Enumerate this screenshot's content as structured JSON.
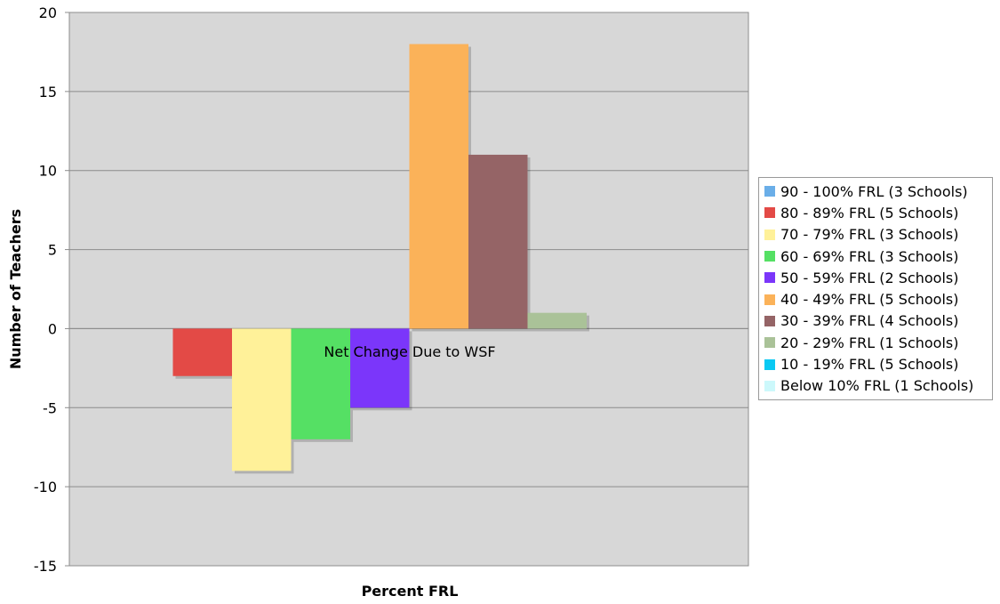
{
  "chart_data": {
    "type": "bar",
    "title": "",
    "xlabel": "Percent FRL",
    "ylabel": "Number of Teachers",
    "categories": [
      "Net Change Due to WSF"
    ],
    "ylim": [
      -15,
      20
    ],
    "yticks": [
      20,
      15,
      10,
      5,
      0,
      -5,
      -10,
      -15
    ],
    "grid": true,
    "legend_position": "right",
    "series": [
      {
        "name": "90 - 100% FRL (3 Schools)",
        "values": [
          0
        ],
        "color": "#6aaee8"
      },
      {
        "name": "80 - 89% FRL (5 Schools)",
        "values": [
          -3
        ],
        "color": "#e34a46"
      },
      {
        "name": "70 - 79% FRL (3 Schools)",
        "values": [
          -9
        ],
        "color": "#fff199"
      },
      {
        "name": "60 - 69% FRL (3 Schools)",
        "values": [
          -7
        ],
        "color": "#55e064"
      },
      {
        "name": "50 - 59% FRL (2 Schools)",
        "values": [
          -5
        ],
        "color": "#7b36fa"
      },
      {
        "name": "40 - 49% FRL (5 Schools)",
        "values": [
          18
        ],
        "color": "#fbb259"
      },
      {
        "name": "30 - 39% FRL (4 Schools)",
        "values": [
          11
        ],
        "color": "#956466"
      },
      {
        "name": "20 - 29% FRL (1 Schools)",
        "values": [
          1
        ],
        "color": "#aac298"
      },
      {
        "name": "10 - 19% FRL (5 Schools)",
        "values": [
          0
        ],
        "color": "#0ac9f3"
      },
      {
        "name": "Below 10% FRL (1 Schools)",
        "values": [
          0
        ],
        "color": "#ccf8fb"
      }
    ]
  }
}
